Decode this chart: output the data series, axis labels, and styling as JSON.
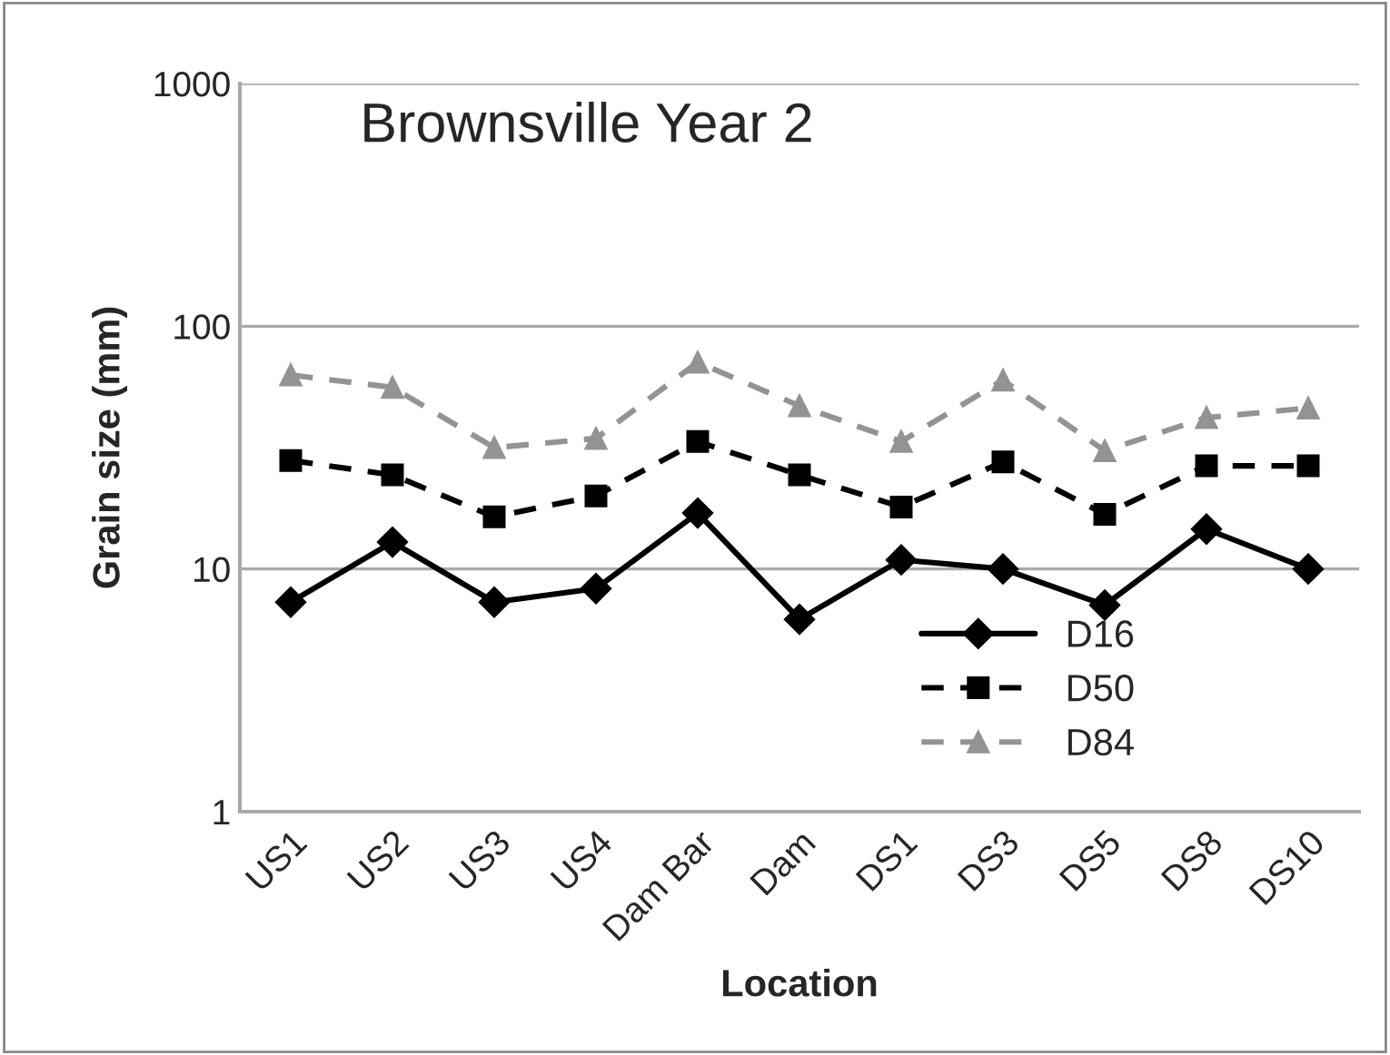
{
  "chart_data": {
    "type": "line",
    "title": "Brownsville Year 2",
    "xlabel": "Location",
    "ylabel": "Grain size (mm)",
    "categories": [
      "US1",
      "US2",
      "US3",
      "US4",
      "Dam Bar",
      "Dam",
      "DS1",
      "DS3",
      "DS5",
      "DS8",
      "DS10"
    ],
    "series": [
      {
        "name": "D16",
        "color": "#000000",
        "marker": "diamond",
        "line_style": "solid",
        "values": [
          7.3,
          12.9,
          7.3,
          8.3,
          17,
          6.2,
          10.9,
          10,
          7.1,
          14.6,
          10
        ]
      },
      {
        "name": "D50",
        "color": "#000000",
        "marker": "square",
        "line_style": "dashed",
        "values": [
          28,
          24.4,
          16.4,
          20,
          33.5,
          24.4,
          18,
          27.6,
          16.8,
          26.6,
          26.6
        ]
      },
      {
        "name": "D84",
        "color": "#939393",
        "marker": "triangle",
        "line_style": "dashed",
        "values": [
          63,
          56,
          31.6,
          34.5,
          71,
          47,
          33.5,
          60,
          30.7,
          42,
          46
        ]
      }
    ],
    "log": "y",
    "ylim": [
      1,
      1000
    ],
    "yticks": [
      1,
      10,
      100,
      1000
    ],
    "grid": "y",
    "legend": "lower right"
  }
}
